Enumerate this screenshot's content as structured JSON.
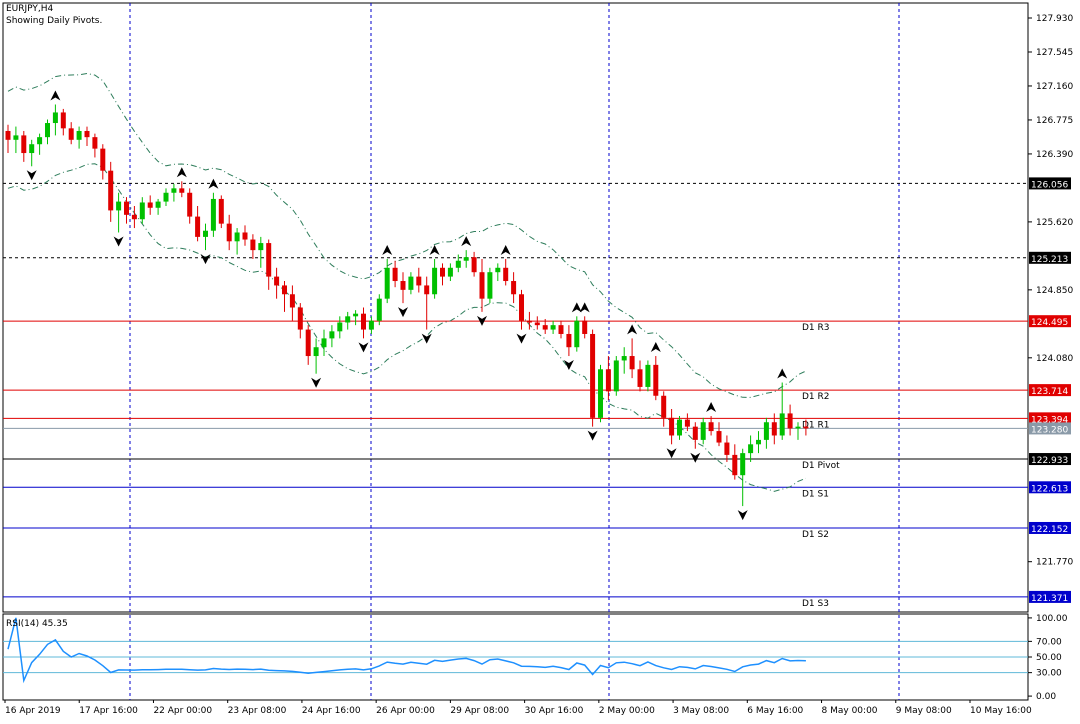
{
  "chart_data": [
    {
      "type": "candlestick",
      "title": "EURJPY,H4",
      "subtitle": "Showing Daily Pivots.",
      "ylim": [
        121.2,
        128.1
      ],
      "price_ticks": [
        "127.930",
        "127.545",
        "127.160",
        "126.775",
        "126.390",
        "125.620",
        "124.850",
        "124.080",
        "121.770"
      ],
      "candles": [
        [
          126.65,
          126.72,
          126.4,
          126.55
        ],
        [
          126.55,
          126.7,
          126.4,
          126.6
        ],
        [
          126.6,
          126.65,
          126.3,
          126.4
        ],
        [
          126.4,
          126.55,
          126.25,
          126.5
        ],
        [
          126.5,
          126.62,
          126.38,
          126.58
        ],
        [
          126.58,
          126.78,
          126.5,
          126.74
        ],
        [
          126.74,
          126.95,
          126.6,
          126.86
        ],
        [
          126.86,
          126.9,
          126.6,
          126.68
        ],
        [
          126.68,
          126.75,
          126.5,
          126.55
        ],
        [
          126.55,
          126.7,
          126.45,
          126.65
        ],
        [
          126.65,
          126.7,
          126.48,
          126.58
        ],
        [
          126.58,
          126.62,
          126.35,
          126.45
        ],
        [
          126.45,
          126.5,
          126.1,
          126.2
        ],
        [
          126.2,
          126.3,
          125.62,
          125.75
        ],
        [
          125.75,
          125.95,
          125.5,
          125.85
        ],
        [
          125.85,
          125.9,
          125.6,
          125.7
        ],
        [
          125.7,
          125.8,
          125.55,
          125.65
        ],
        [
          125.65,
          125.9,
          125.6,
          125.84
        ],
        [
          125.84,
          125.92,
          125.7,
          125.78
        ],
        [
          125.78,
          125.88,
          125.7,
          125.85
        ],
        [
          125.85,
          126.0,
          125.8,
          125.95
        ],
        [
          125.95,
          126.05,
          125.85,
          126.0
        ],
        [
          126.0,
          126.08,
          125.9,
          125.95
        ],
        [
          125.95,
          126.0,
          125.6,
          125.68
        ],
        [
          125.68,
          125.8,
          125.4,
          125.45
        ],
        [
          125.45,
          125.6,
          125.3,
          125.52
        ],
        [
          125.52,
          125.95,
          125.45,
          125.88
        ],
        [
          125.88,
          125.92,
          125.55,
          125.6
        ],
        [
          125.6,
          125.7,
          125.3,
          125.4
        ],
        [
          125.4,
          125.55,
          125.25,
          125.5
        ],
        [
          125.5,
          125.58,
          125.35,
          125.42
        ],
        [
          125.42,
          125.48,
          125.2,
          125.3
        ],
        [
          125.3,
          125.45,
          125.1,
          125.38
        ],
        [
          125.38,
          125.42,
          124.85,
          125.0
        ],
        [
          125.0,
          125.1,
          124.75,
          124.9
        ],
        [
          124.9,
          124.95,
          124.6,
          124.8
        ],
        [
          124.8,
          124.9,
          124.5,
          124.65
        ],
        [
          124.65,
          124.7,
          124.3,
          124.4
        ],
        [
          124.4,
          124.45,
          124.0,
          124.1
        ],
        [
          124.1,
          124.3,
          123.9,
          124.2
        ],
        [
          124.2,
          124.4,
          124.1,
          124.3
        ],
        [
          124.3,
          124.45,
          124.2,
          124.38
        ],
        [
          124.38,
          124.55,
          124.3,
          124.48
        ],
        [
          124.48,
          124.6,
          124.4,
          124.55
        ],
        [
          124.55,
          124.62,
          124.45,
          124.58
        ],
        [
          124.58,
          124.65,
          124.3,
          124.4
        ],
        [
          124.4,
          124.55,
          124.35,
          124.5
        ],
        [
          124.5,
          124.8,
          124.45,
          124.75
        ],
        [
          124.75,
          125.2,
          124.7,
          125.1
        ],
        [
          125.1,
          125.18,
          124.88,
          124.95
        ],
        [
          124.95,
          125.05,
          124.7,
          124.85
        ],
        [
          124.85,
          125.05,
          124.8,
          125.0
        ],
        [
          125.0,
          125.1,
          124.82,
          124.9
        ],
        [
          124.9,
          125.0,
          124.4,
          124.8
        ],
        [
          124.8,
          125.2,
          124.75,
          125.1
        ],
        [
          125.1,
          125.15,
          124.9,
          125.0
        ],
        [
          125.0,
          125.15,
          124.95,
          125.1
        ],
        [
          125.1,
          125.25,
          125.05,
          125.18
        ],
        [
          125.18,
          125.3,
          125.1,
          125.22
        ],
        [
          125.22,
          125.28,
          125.0,
          125.05
        ],
        [
          125.05,
          125.2,
          124.6,
          124.75
        ],
        [
          124.75,
          125.1,
          124.7,
          125.05
        ],
        [
          125.05,
          125.15,
          124.95,
          125.1
        ],
        [
          125.1,
          125.2,
          124.9,
          124.95
        ],
        [
          124.95,
          125.05,
          124.7,
          124.8
        ],
        [
          124.8,
          124.85,
          124.4,
          124.5
        ],
        [
          124.5,
          124.6,
          124.4,
          124.48
        ],
        [
          124.48,
          124.55,
          124.4,
          124.45
        ],
        [
          124.45,
          124.52,
          124.35,
          124.4
        ],
        [
          124.4,
          124.5,
          124.35,
          124.45
        ],
        [
          124.45,
          124.5,
          124.3,
          124.35
        ],
        [
          124.35,
          124.45,
          124.1,
          124.2
        ],
        [
          124.2,
          124.55,
          124.15,
          124.5
        ],
        [
          124.5,
          124.55,
          124.3,
          124.35
        ],
        [
          124.35,
          124.4,
          123.3,
          123.4
        ],
        [
          123.4,
          124.0,
          123.35,
          123.95
        ],
        [
          123.95,
          124.1,
          123.6,
          123.7
        ],
        [
          123.7,
          124.1,
          123.65,
          124.05
        ],
        [
          124.05,
          124.2,
          123.9,
          124.1
        ],
        [
          124.1,
          124.3,
          123.85,
          123.95
        ],
        [
          123.95,
          124.05,
          123.7,
          123.75
        ],
        [
          123.75,
          124.05,
          123.7,
          124.0
        ],
        [
          124.0,
          124.1,
          123.6,
          123.65
        ],
        [
          123.65,
          123.7,
          123.3,
          123.4
        ],
        [
          123.4,
          123.5,
          123.1,
          123.2
        ],
        [
          123.2,
          123.42,
          123.15,
          123.38
        ],
        [
          123.38,
          123.45,
          123.25,
          123.3
        ],
        [
          123.3,
          123.35,
          123.05,
          123.15
        ],
        [
          123.15,
          123.4,
          123.1,
          123.35
        ],
        [
          123.35,
          123.42,
          123.2,
          123.25
        ],
        [
          123.25,
          123.35,
          123.08,
          123.12
        ],
        [
          123.12,
          123.2,
          122.9,
          122.98
        ],
        [
          122.98,
          123.1,
          122.7,
          122.75
        ],
        [
          122.75,
          123.05,
          122.4,
          123.0
        ],
        [
          123.0,
          123.2,
          122.9,
          123.1
        ],
        [
          123.1,
          123.25,
          123.0,
          123.15
        ],
        [
          123.15,
          123.4,
          123.05,
          123.35
        ],
        [
          123.35,
          123.45,
          123.1,
          123.2
        ],
        [
          123.2,
          123.8,
          123.15,
          123.45
        ],
        [
          123.45,
          123.55,
          123.2,
          123.28
        ],
        [
          123.28,
          123.35,
          123.15,
          123.3
        ],
        [
          123.3,
          123.38,
          123.2,
          123.28
        ]
      ],
      "date_labels": [
        "16 Apr 2019",
        "17 Apr 16:00",
        "22 Apr 00:00",
        "23 Apr 08:00",
        "24 Apr 16:00",
        "26 Apr 00:00",
        "29 Apr 08:00",
        "30 Apr 16:00",
        "2 May 00:00",
        "3 May 08:00",
        "6 May 16:00",
        "8 May 00:00",
        "9 May 08:00",
        "10 May 16:00"
      ],
      "pivot_levels": [
        {
          "label": "D1 R3",
          "value": 124.495,
          "price_label": "124.495",
          "color": "#e00000"
        },
        {
          "label": "D1 R2",
          "value": 123.714,
          "price_label": "123.714",
          "color": "#e00000"
        },
        {
          "label": "D1 R1",
          "value": 123.394,
          "price_label": "123.394",
          "color": "#e00000"
        },
        {
          "label": "D1 Pivot",
          "value": 122.933,
          "price_label": "122.933",
          "color": "#000000"
        },
        {
          "label": "D1 S1",
          "value": 122.613,
          "price_label": "122.613",
          "color": "#0000cc"
        },
        {
          "label": "D1 S2",
          "value": 122.152,
          "price_label": "122.152",
          "color": "#0000cc"
        },
        {
          "label": "D1 S3",
          "value": 121.371,
          "price_label": "121.371",
          "color": "#0000cc"
        }
      ],
      "dotted_levels": [
        {
          "value": 126.056,
          "price_label": "126.056"
        },
        {
          "value": 125.213,
          "price_label": "125.213"
        }
      ],
      "current_price": {
        "value": 123.28,
        "price_label": "123.280"
      },
      "colors": {
        "bull": "#00c000",
        "bear": "#e00000",
        "band": "#2e7d5b",
        "current": "#8a9aa8"
      }
    },
    {
      "type": "line",
      "title": "RSI(14) 45.35",
      "ylim": [
        -5,
        105
      ],
      "ticks": [
        "100.00",
        "70.00",
        "50.00",
        "30.00",
        "0.00"
      ],
      "levels": [
        70,
        50,
        30
      ],
      "color": "#1e90ff"
    }
  ]
}
